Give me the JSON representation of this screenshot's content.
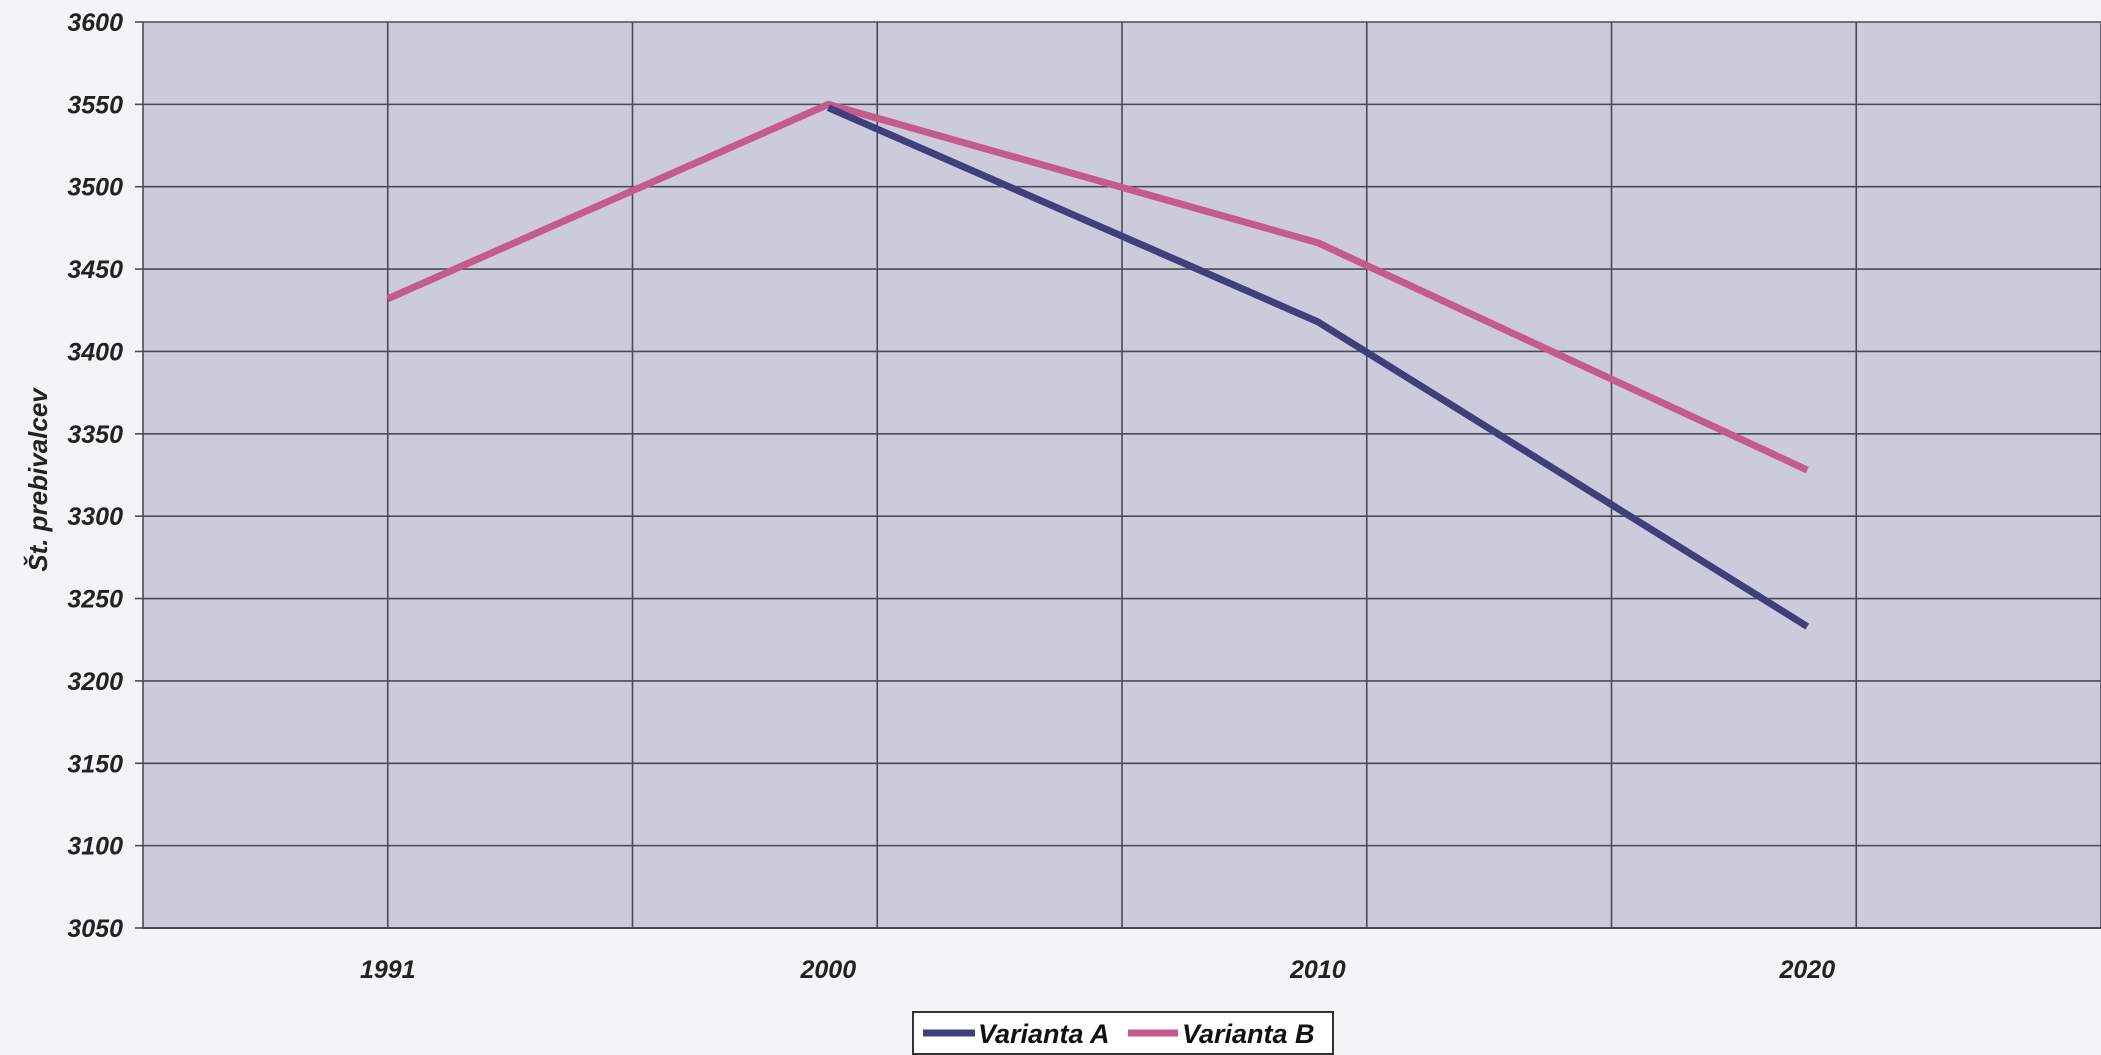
{
  "chart_data": {
    "type": "line",
    "title": "",
    "xlabel": "",
    "ylabel": "Št. prebivalcev",
    "categories": [
      "1991",
      "2000",
      "2010",
      "2020"
    ],
    "x_range": [
      1986,
      2026
    ],
    "ylim": [
      3050,
      3600
    ],
    "y_ticks": [
      3050,
      3100,
      3150,
      3200,
      3250,
      3300,
      3350,
      3400,
      3450,
      3500,
      3550,
      3600
    ],
    "x_ticks": [
      1991,
      2000,
      2010,
      2020
    ],
    "grid": true,
    "legend_position": "bottom",
    "series": [
      {
        "name": "Varianta A",
        "color": "#3f3f7c",
        "points": [
          [
            2000,
            3548
          ],
          [
            2010,
            3418
          ],
          [
            2020,
            3233
          ]
        ]
      },
      {
        "name": "Varianta B",
        "color": "#c45b8a",
        "points": [
          [
            1991,
            3432
          ],
          [
            2000,
            3550
          ],
          [
            2010,
            3466
          ],
          [
            2020,
            3328
          ]
        ]
      }
    ],
    "colors": {
      "plot_background": "#cbcbdc",
      "grid": "#4a4a52"
    }
  }
}
